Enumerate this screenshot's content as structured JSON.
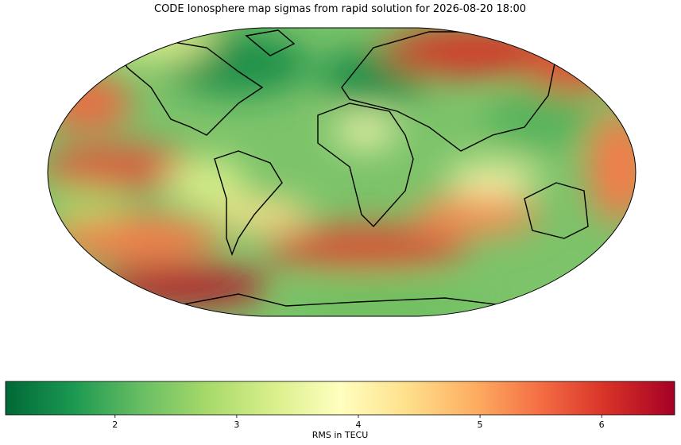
{
  "title": "CODE Ionosphere map sigmas from rapid solution for 2026-08-20 18:00",
  "colorbar": {
    "label": "RMS in TECU",
    "lim": [
      1.1,
      6.6
    ],
    "ticks": [
      2,
      3,
      4,
      5,
      6
    ],
    "colormap": "RdYlGn_r"
  }
}
